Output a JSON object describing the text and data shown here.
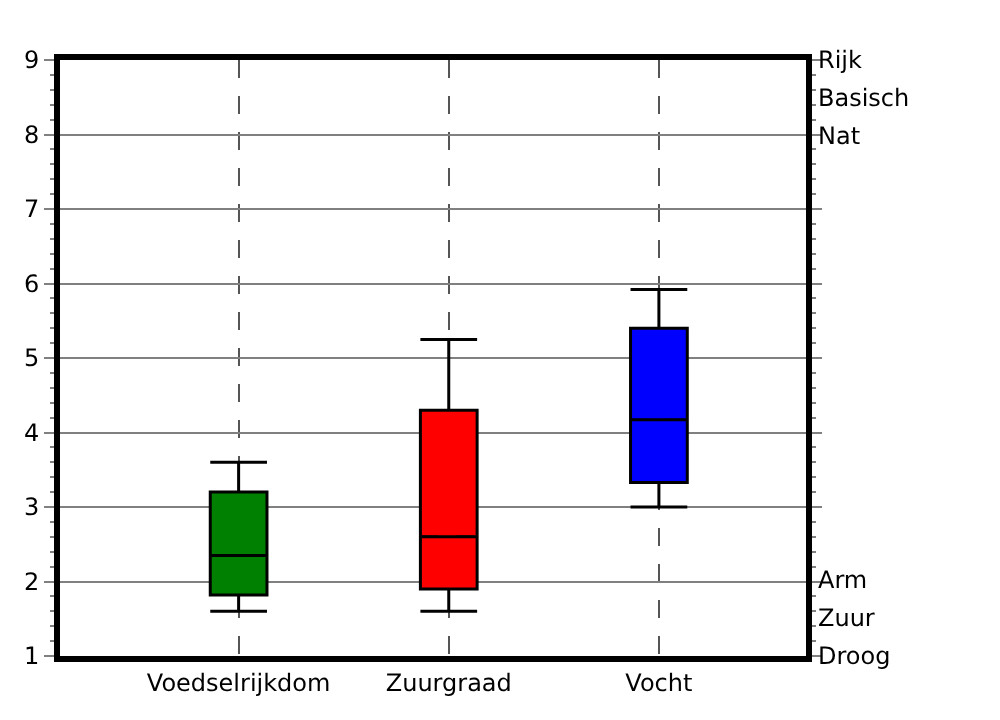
{
  "chart_data": {
    "type": "box",
    "categories": [
      "Voedselrijkdom",
      "Zuurgraad",
      "Vocht"
    ],
    "colors": [
      "#008000",
      "#ff0000",
      "#0000ff"
    ],
    "boxes": [
      {
        "low": 1.6,
        "q1": 1.82,
        "median": 2.35,
        "q3": 3.2,
        "high": 3.6
      },
      {
        "low": 1.6,
        "q1": 1.9,
        "median": 2.6,
        "q3": 4.3,
        "high": 5.25
      },
      {
        "low": 3.0,
        "q1": 3.33,
        "median": 4.17,
        "q3": 5.4,
        "high": 5.92
      }
    ],
    "ylim": [
      1,
      9
    ],
    "yticks": [
      1,
      2,
      3,
      4,
      5,
      6,
      7,
      8,
      9
    ],
    "grid": true,
    "annotations": [
      "Rijk",
      "Basisch",
      "Nat",
      "Arm",
      "Zuur",
      "Droog"
    ]
  }
}
